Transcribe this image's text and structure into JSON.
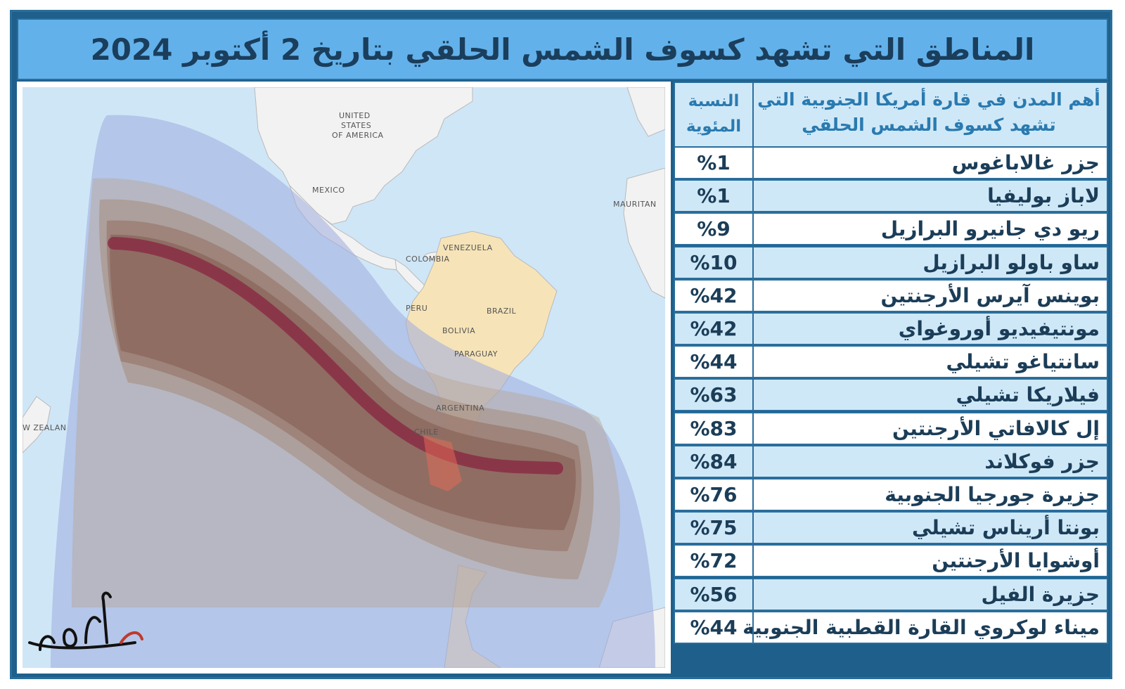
{
  "title": "المناطق التي تشهد كسوف الشمس الحلقي بتاريخ 2 أكتوبر 2024",
  "table": {
    "header_city": "أهم المدن في قارة أمريكا الجنوبية التي تشهد كسوف الشمس الحلقي",
    "header_pct": "النسبة المئوية",
    "rows": [
      {
        "city": "جزر غالاباغوس",
        "pct": "%1"
      },
      {
        "city": "لاباز بوليفيا",
        "pct": "%1"
      },
      {
        "city": "ريو دي جانيرو البرازيل",
        "pct": "%9"
      },
      {
        "city": "ساو باولو البرازيل",
        "pct": "%10"
      },
      {
        "city": "بوينس آيرس الأرجنتين",
        "pct": "%42"
      },
      {
        "city": "مونتيفيديو أوروغواي",
        "pct": "%42"
      },
      {
        "city": "سانتياغو تشيلي",
        "pct": "%44"
      },
      {
        "city": "فيلاريكا تشيلي",
        "pct": "%63"
      },
      {
        "city": "إل كالافاتي الأرجنتين",
        "pct": "%83"
      },
      {
        "city": "جزر فوكلاند",
        "pct": "%84"
      },
      {
        "city": "جزيرة جورجيا الجنوبية",
        "pct": "%76"
      },
      {
        "city": "بونتا أريناس تشيلي",
        "pct": "%75"
      },
      {
        "city": "أوشوايا الأرجنتين",
        "pct": "%72"
      },
      {
        "city": "جزيرة الفيل",
        "pct": "%56"
      },
      {
        "city": "ميناء لوكروي القارة القطبية الجنوبية",
        "pct": "%44"
      }
    ]
  },
  "map": {
    "labels": {
      "usa_1": "UNITED",
      "usa_2": "STATES",
      "usa_3": "OF AMERICA",
      "mexico": "MEXICO",
      "mauritania": "MAURITAN",
      "venezuela": "VENEZUELA",
      "colombia": "COLOMBIA",
      "peru": "PERU",
      "brazil": "BRAZIL",
      "bolivia": "BOLIVIA",
      "paraguay": "PARAGUAY",
      "argentina": "ARGENTINA",
      "chile": "CHILE",
      "new_zealand": "W ZEALAN"
    },
    "colors": {
      "ocean": "#cfe6f7",
      "land": "#f2f2f2",
      "zone_outer": "#b9c4ea",
      "zone_mid": "#c9b3a0",
      "zone_inner": "#9e7c6c",
      "path": "#8a2d44"
    }
  },
  "colors": {
    "title_bg": "#63b1ea",
    "title_text": "#1a3e5c",
    "row_light": "#ffffff",
    "row_tint": "#cfe8f7",
    "border": "#2a6e9c"
  }
}
